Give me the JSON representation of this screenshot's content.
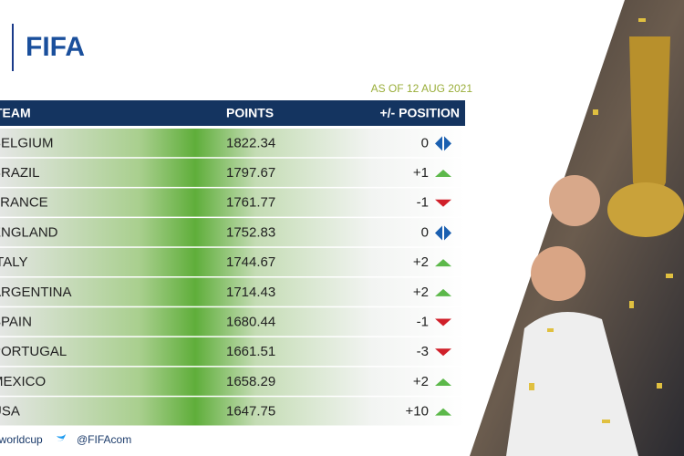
{
  "logo": "FIFA",
  "as_of": "AS OF 12 AUG 2021",
  "table": {
    "header": [
      "TEAM",
      "POINTS",
      "+/- POSITION"
    ],
    "rows": [
      [
        "BELGIUM",
        1822.34,
        "0"
      ],
      [
        "BRAZIL",
        1797.67,
        "+1"
      ],
      [
        "FRANCE",
        1761.77,
        "-1"
      ],
      [
        "ENGLAND",
        1752.83,
        "0"
      ],
      [
        "ITALY",
        1744.67,
        "+2"
      ],
      [
        "ARGENTINA",
        1714.43,
        "+2"
      ],
      [
        "SPAIN",
        1680.44,
        "-1"
      ],
      [
        "PORTUGAL",
        1661.51,
        "-3"
      ],
      [
        "MEXICO",
        1658.29,
        "+2"
      ],
      [
        "USA",
        1647.75,
        "+10"
      ]
    ]
  },
  "footer": {
    "hashtag": "#worldcup",
    "handle": "@FIFAcom"
  }
}
